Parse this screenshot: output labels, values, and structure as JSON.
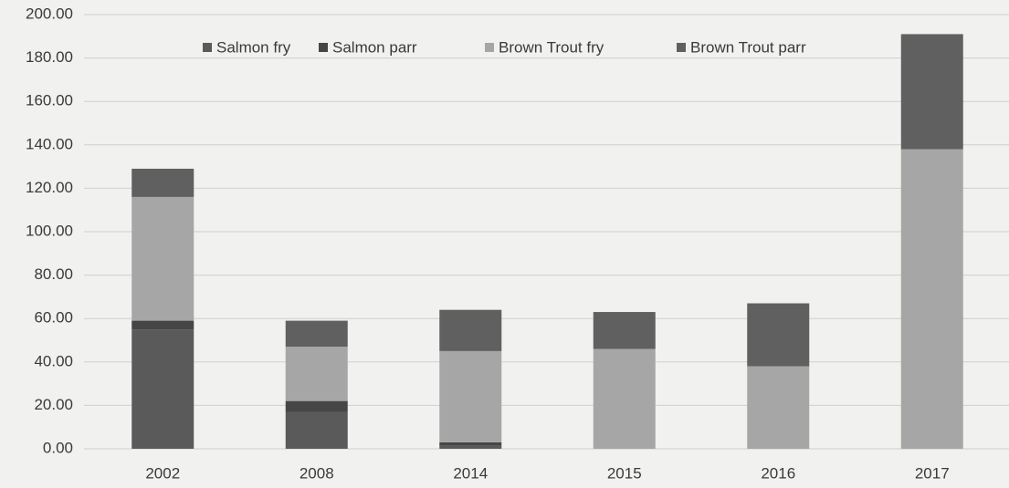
{
  "chart_data": {
    "type": "stacked_bar",
    "categories": [
      "2002",
      "2008",
      "2014",
      "2015",
      "2016",
      "2017"
    ],
    "series": [
      {
        "name": "Salmon fry",
        "color": "#5a5a5a",
        "values": [
          55,
          17,
          1.5,
          0,
          0,
          0
        ]
      },
      {
        "name": "Salmon parr",
        "color": "#464646",
        "values": [
          4,
          5,
          1.5,
          0,
          0,
          0
        ]
      },
      {
        "name": "Brown Trout fry",
        "color": "#a6a6a6",
        "values": [
          57,
          25,
          42,
          46,
          38,
          138
        ]
      },
      {
        "name": "Brown Trout parr",
        "color": "#606060",
        "values": [
          13,
          12,
          19,
          17,
          29,
          53
        ]
      }
    ],
    "ylim": [
      0,
      200
    ],
    "yticks": [
      {
        "value": 0,
        "label": "0.00"
      },
      {
        "value": 20,
        "label": "20.00"
      },
      {
        "value": 40,
        "label": "40.00"
      },
      {
        "value": 60,
        "label": "60.00"
      },
      {
        "value": 80,
        "label": "80.00"
      },
      {
        "value": 100,
        "label": "100.00"
      },
      {
        "value": 120,
        "label": "120.00"
      },
      {
        "value": 140,
        "label": "140.00"
      },
      {
        "value": 160,
        "label": "160.00"
      },
      {
        "value": 180,
        "label": "180.00"
      },
      {
        "value": 200,
        "label": "200.00"
      }
    ],
    "grid": true,
    "legend": "top"
  }
}
